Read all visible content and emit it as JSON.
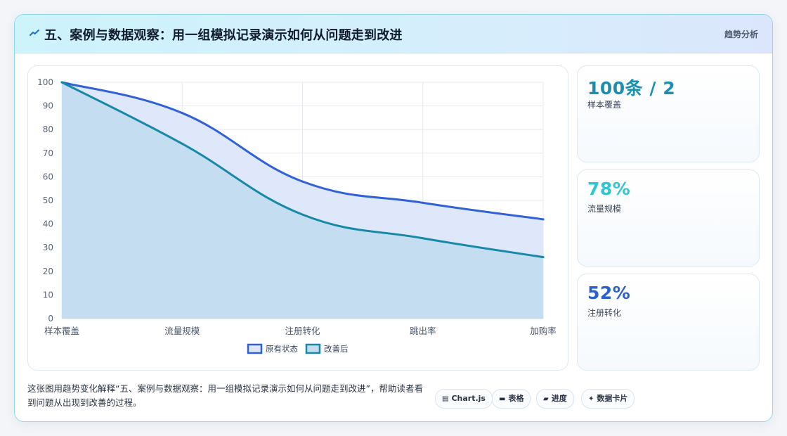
{
  "header": {
    "title": "五、案例与数据观察：用一组模拟记录演示如何从问题走到改进",
    "tag": "趋势分析"
  },
  "stats": [
    {
      "value": "100条 / 2",
      "label": "样本覆盖",
      "color": "#1a8fb0"
    },
    {
      "value": "78%",
      "label": "流量规模",
      "color": "#2ec5d6"
    },
    {
      "value": "52%",
      "label": "注册转化",
      "color": "#2a5fd0"
    }
  ],
  "caption": "这张图用趋势变化解释“五、案例与数据观察：用一组模拟记录演示如何从问题走到改进”，帮助读者看到问题从出现到改善的过程。",
  "pills": [
    {
      "icon": "chart-icon",
      "glyph": "▤",
      "label": "Chart.js"
    },
    {
      "icon": "table-icon",
      "glyph": "▬",
      "label": "表格"
    },
    {
      "icon": "progress-icon",
      "glyph": "▰",
      "label": "进度"
    },
    {
      "icon": "sparkle-icon",
      "glyph": "✦",
      "label": "数据卡片"
    }
  ],
  "chart_data": {
    "type": "area",
    "categories": [
      "样本覆盖",
      "流量规模",
      "注册转化",
      "跳出率",
      "加购率"
    ],
    "ylim": [
      0,
      100
    ],
    "yticks": [
      0,
      10,
      20,
      30,
      40,
      50,
      60,
      70,
      80,
      90,
      100
    ],
    "grid": true,
    "legend_position": "bottom",
    "series": [
      {
        "name": "原有状态",
        "values": [
          100,
          87,
          58,
          49,
          42
        ],
        "color": "#2f62d6",
        "fill": "#dde7fb"
      },
      {
        "name": "改善后",
        "values": [
          100,
          74,
          44,
          34,
          26
        ],
        "color": "#1789a8",
        "fill": "#c2dcf0"
      }
    ]
  }
}
